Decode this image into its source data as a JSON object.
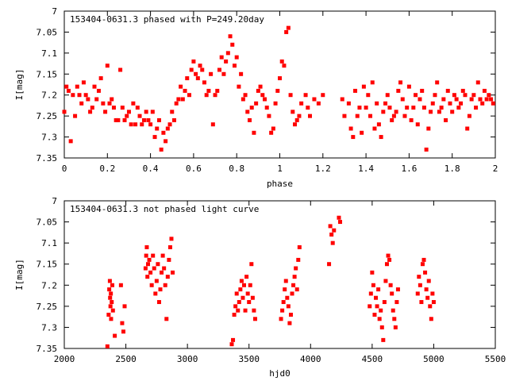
{
  "chart_data": [
    {
      "type": "scatter",
      "title": "153404-0631.3 phased with P=249.20day",
      "xlabel": "phase",
      "ylabel": "I[mag]",
      "xlim": [
        0,
        2
      ],
      "ylim": [
        7.35,
        7.0
      ],
      "y_inverted": true,
      "x_ticks": [
        "0",
        "0.2",
        "0.4",
        "0.6",
        "0.8",
        "1",
        "1.2",
        "1.4",
        "1.6",
        "1.8",
        "2"
      ],
      "x_tick_values": [
        0,
        0.2,
        0.4,
        0.6,
        0.8,
        1.0,
        1.2,
        1.4,
        1.6,
        1.8,
        2.0
      ],
      "y_ticks": [
        "7",
        "7.05",
        "7.1",
        "7.15",
        "7.2",
        "7.25",
        "7.3",
        "7.35"
      ],
      "y_tick_values": [
        7.0,
        7.05,
        7.1,
        7.15,
        7.2,
        7.25,
        7.3,
        7.35
      ],
      "marker_color": "#ff0000",
      "grid": false,
      "points": [
        [
          0.0,
          7.24
        ],
        [
          0.01,
          7.18
        ],
        [
          0.02,
          7.19
        ],
        [
          0.03,
          7.31
        ],
        [
          0.04,
          7.2
        ],
        [
          0.05,
          7.25
        ],
        [
          0.06,
          7.18
        ],
        [
          0.07,
          7.2
        ],
        [
          0.08,
          7.22
        ],
        [
          0.09,
          7.17
        ],
        [
          0.1,
          7.2
        ],
        [
          0.11,
          7.21
        ],
        [
          0.12,
          7.24
        ],
        [
          0.13,
          7.23
        ],
        [
          0.14,
          7.18
        ],
        [
          0.15,
          7.21
        ],
        [
          0.16,
          7.19
        ],
        [
          0.17,
          7.16
        ],
        [
          0.18,
          7.22
        ],
        [
          0.19,
          7.24
        ],
        [
          0.2,
          7.13
        ],
        [
          0.21,
          7.22
        ],
        [
          0.22,
          7.21
        ],
        [
          0.23,
          7.23
        ],
        [
          0.24,
          7.26
        ],
        [
          0.25,
          7.26
        ],
        [
          0.26,
          7.14
        ],
        [
          0.27,
          7.23
        ],
        [
          0.28,
          7.26
        ],
        [
          0.29,
          7.25
        ],
        [
          0.3,
          7.24
        ],
        [
          0.31,
          7.27
        ],
        [
          0.32,
          7.22
        ],
        [
          0.33,
          7.27
        ],
        [
          0.34,
          7.23
        ],
        [
          0.35,
          7.25
        ],
        [
          0.36,
          7.27
        ],
        [
          0.37,
          7.26
        ],
        [
          0.38,
          7.24
        ],
        [
          0.39,
          7.26
        ],
        [
          0.4,
          7.27
        ],
        [
          0.41,
          7.24
        ],
        [
          0.42,
          7.3
        ],
        [
          0.43,
          7.28
        ],
        [
          0.44,
          7.26
        ],
        [
          0.45,
          7.33
        ],
        [
          0.46,
          7.29
        ],
        [
          0.47,
          7.31
        ],
        [
          0.48,
          7.28
        ],
        [
          0.49,
          7.27
        ],
        [
          0.5,
          7.24
        ],
        [
          0.51,
          7.26
        ],
        [
          0.52,
          7.22
        ],
        [
          0.53,
          7.21
        ],
        [
          0.54,
          7.18
        ],
        [
          0.55,
          7.21
        ],
        [
          0.56,
          7.19
        ],
        [
          0.57,
          7.16
        ],
        [
          0.58,
          7.2
        ],
        [
          0.59,
          7.14
        ],
        [
          0.6,
          7.12
        ],
        [
          0.61,
          7.15
        ],
        [
          0.62,
          7.16
        ],
        [
          0.63,
          7.13
        ],
        [
          0.64,
          7.14
        ],
        [
          0.65,
          7.17
        ],
        [
          0.66,
          7.2
        ],
        [
          0.67,
          7.19
        ],
        [
          0.68,
          7.15
        ],
        [
          0.69,
          7.27
        ],
        [
          0.7,
          7.2
        ],
        [
          0.71,
          7.19
        ],
        [
          0.72,
          7.14
        ],
        [
          0.73,
          7.11
        ],
        [
          0.74,
          7.15
        ],
        [
          0.75,
          7.12
        ],
        [
          0.76,
          7.1
        ],
        [
          0.77,
          7.06
        ],
        [
          0.78,
          7.08
        ],
        [
          0.79,
          7.13
        ],
        [
          0.8,
          7.11
        ],
        [
          0.81,
          7.18
        ],
        [
          0.82,
          7.15
        ],
        [
          0.83,
          7.21
        ],
        [
          0.84,
          7.2
        ],
        [
          0.85,
          7.24
        ],
        [
          0.86,
          7.26
        ],
        [
          0.87,
          7.23
        ],
        [
          0.88,
          7.29
        ],
        [
          0.89,
          7.22
        ],
        [
          0.9,
          7.19
        ],
        [
          0.91,
          7.18
        ],
        [
          0.92,
          7.2
        ],
        [
          0.93,
          7.21
        ],
        [
          0.94,
          7.23
        ],
        [
          0.95,
          7.25
        ],
        [
          0.96,
          7.29
        ],
        [
          0.97,
          7.28
        ],
        [
          0.98,
          7.22
        ],
        [
          0.99,
          7.19
        ],
        [
          1.0,
          7.16
        ],
        [
          1.01,
          7.12
        ],
        [
          1.02,
          7.13
        ],
        [
          1.03,
          7.05
        ],
        [
          1.04,
          7.04
        ],
        [
          1.05,
          7.2
        ],
        [
          1.06,
          7.24
        ],
        [
          1.07,
          7.27
        ],
        [
          1.08,
          7.26
        ],
        [
          1.09,
          7.25
        ],
        [
          1.1,
          7.22
        ],
        [
          1.12,
          7.2
        ],
        [
          1.13,
          7.23
        ],
        [
          1.14,
          7.25
        ],
        [
          1.16,
          7.21
        ],
        [
          1.18,
          7.22
        ],
        [
          1.2,
          7.2
        ],
        [
          1.29,
          7.21
        ],
        [
          1.3,
          7.25
        ],
        [
          1.32,
          7.22
        ],
        [
          1.33,
          7.28
        ],
        [
          1.34,
          7.3
        ],
        [
          1.35,
          7.19
        ],
        [
          1.36,
          7.25
        ],
        [
          1.37,
          7.23
        ],
        [
          1.38,
          7.29
        ],
        [
          1.39,
          7.18
        ],
        [
          1.4,
          7.23
        ],
        [
          1.41,
          7.2
        ],
        [
          1.42,
          7.25
        ],
        [
          1.43,
          7.17
        ],
        [
          1.44,
          7.28
        ],
        [
          1.45,
          7.22
        ],
        [
          1.46,
          7.27
        ],
        [
          1.47,
          7.3
        ],
        [
          1.48,
          7.24
        ],
        [
          1.49,
          7.22
        ],
        [
          1.5,
          7.2
        ],
        [
          1.51,
          7.23
        ],
        [
          1.52,
          7.26
        ],
        [
          1.53,
          7.25
        ],
        [
          1.54,
          7.24
        ],
        [
          1.55,
          7.19
        ],
        [
          1.56,
          7.17
        ],
        [
          1.57,
          7.21
        ],
        [
          1.58,
          7.25
        ],
        [
          1.59,
          7.23
        ],
        [
          1.6,
          7.18
        ],
        [
          1.61,
          7.26
        ],
        [
          1.62,
          7.23
        ],
        [
          1.63,
          7.2
        ],
        [
          1.64,
          7.27
        ],
        [
          1.65,
          7.21
        ],
        [
          1.66,
          7.19
        ],
        [
          1.67,
          7.23
        ],
        [
          1.68,
          7.33
        ],
        [
          1.69,
          7.28
        ],
        [
          1.7,
          7.24
        ],
        [
          1.71,
          7.22
        ],
        [
          1.72,
          7.2
        ],
        [
          1.73,
          7.17
        ],
        [
          1.74,
          7.24
        ],
        [
          1.75,
          7.23
        ],
        [
          1.76,
          7.21
        ],
        [
          1.77,
          7.26
        ],
        [
          1.78,
          7.19
        ],
        [
          1.79,
          7.22
        ],
        [
          1.8,
          7.24
        ],
        [
          1.81,
          7.2
        ],
        [
          1.82,
          7.21
        ],
        [
          1.83,
          7.23
        ],
        [
          1.84,
          7.22
        ],
        [
          1.85,
          7.19
        ],
        [
          1.86,
          7.2
        ],
        [
          1.87,
          7.28
        ],
        [
          1.88,
          7.25
        ],
        [
          1.89,
          7.21
        ],
        [
          1.9,
          7.2
        ],
        [
          1.91,
          7.23
        ],
        [
          1.92,
          7.17
        ],
        [
          1.93,
          7.21
        ],
        [
          1.94,
          7.22
        ],
        [
          1.95,
          7.19
        ],
        [
          1.96,
          7.21
        ],
        [
          1.97,
          7.2
        ],
        [
          1.98,
          7.21
        ],
        [
          1.99,
          7.22
        ]
      ]
    },
    {
      "type": "scatter",
      "title": "153404-0631.3 not phased light curve",
      "xlabel": "hjd0",
      "ylabel": "I[mag]",
      "xlim": [
        2000,
        5500
      ],
      "ylim": [
        7.35,
        7.0
      ],
      "y_inverted": true,
      "x_ticks": [
        "2000",
        "2500",
        "3000",
        "3500",
        "4000",
        "4500",
        "5000",
        "5500"
      ],
      "x_tick_values": [
        2000,
        2500,
        3000,
        3500,
        4000,
        4500,
        5000,
        5500
      ],
      "y_ticks": [
        "7",
        "7.05",
        "7.1",
        "7.15",
        "7.2",
        "7.25",
        "7.3",
        "7.35"
      ],
      "y_tick_values": [
        7.0,
        7.05,
        7.1,
        7.15,
        7.2,
        7.25,
        7.3,
        7.35
      ],
      "marker_color": "#ff0000",
      "grid": false,
      "points": [
        [
          2350,
          7.345
        ],
        [
          2360,
          7.27
        ],
        [
          2365,
          7.21
        ],
        [
          2370,
          7.19
        ],
        [
          2372,
          7.23
        ],
        [
          2375,
          7.25
        ],
        [
          2378,
          7.22
        ],
        [
          2380,
          7.28
        ],
        [
          2385,
          7.24
        ],
        [
          2390,
          7.2
        ],
        [
          2395,
          7.26
        ],
        [
          2410,
          7.32
        ],
        [
          2460,
          7.2
        ],
        [
          2470,
          7.29
        ],
        [
          2480,
          7.31
        ],
        [
          2490,
          7.25
        ],
        [
          2660,
          7.16
        ],
        [
          2665,
          7.13
        ],
        [
          2670,
          7.11
        ],
        [
          2675,
          7.18
        ],
        [
          2680,
          7.15
        ],
        [
          2690,
          7.14
        ],
        [
          2700,
          7.17
        ],
        [
          2710,
          7.2
        ],
        [
          2720,
          7.13
        ],
        [
          2730,
          7.16
        ],
        [
          2740,
          7.22
        ],
        [
          2750,
          7.19
        ],
        [
          2760,
          7.15
        ],
        [
          2770,
          7.24
        ],
        [
          2780,
          7.21
        ],
        [
          2790,
          7.17
        ],
        [
          2800,
          7.13
        ],
        [
          2810,
          7.16
        ],
        [
          2820,
          7.2
        ],
        [
          2830,
          7.28
        ],
        [
          2840,
          7.18
        ],
        [
          2850,
          7.14
        ],
        [
          2860,
          7.11
        ],
        [
          2870,
          7.09
        ],
        [
          2880,
          7.17
        ],
        [
          3360,
          7.34
        ],
        [
          3370,
          7.33
        ],
        [
          3380,
          7.27
        ],
        [
          3390,
          7.25
        ],
        [
          3400,
          7.22
        ],
        [
          3410,
          7.26
        ],
        [
          3420,
          7.24
        ],
        [
          3430,
          7.21
        ],
        [
          3440,
          7.19
        ],
        [
          3450,
          7.23
        ],
        [
          3460,
          7.2
        ],
        [
          3470,
          7.26
        ],
        [
          3480,
          7.18
        ],
        [
          3490,
          7.22
        ],
        [
          3500,
          7.24
        ],
        [
          3510,
          7.2
        ],
        [
          3520,
          7.15
        ],
        [
          3530,
          7.23
        ],
        [
          3540,
          7.26
        ],
        [
          3550,
          7.28
        ],
        [
          3760,
          7.28
        ],
        [
          3770,
          7.26
        ],
        [
          3780,
          7.24
        ],
        [
          3790,
          7.21
        ],
        [
          3800,
          7.19
        ],
        [
          3810,
          7.23
        ],
        [
          3820,
          7.25
        ],
        [
          3830,
          7.29
        ],
        [
          3840,
          7.27
        ],
        [
          3850,
          7.22
        ],
        [
          3860,
          7.2
        ],
        [
          3870,
          7.18
        ],
        [
          3880,
          7.16
        ],
        [
          3890,
          7.21
        ],
        [
          3900,
          7.14
        ],
        [
          3910,
          7.11
        ],
        [
          4150,
          7.15
        ],
        [
          4160,
          7.06
        ],
        [
          4170,
          7.08
        ],
        [
          4180,
          7.1
        ],
        [
          4190,
          7.07
        ],
        [
          4230,
          7.04
        ],
        [
          4240,
          7.05
        ],
        [
          4480,
          7.25
        ],
        [
          4490,
          7.22
        ],
        [
          4500,
          7.17
        ],
        [
          4510,
          7.2
        ],
        [
          4520,
          7.27
        ],
        [
          4530,
          7.23
        ],
        [
          4540,
          7.25
        ],
        [
          4550,
          7.21
        ],
        [
          4560,
          7.28
        ],
        [
          4570,
          7.26
        ],
        [
          4580,
          7.3
        ],
        [
          4590,
          7.33
        ],
        [
          4600,
          7.24
        ],
        [
          4610,
          7.19
        ],
        [
          4620,
          7.15
        ],
        [
          4630,
          7.13
        ],
        [
          4640,
          7.14
        ],
        [
          4650,
          7.2
        ],
        [
          4660,
          7.22
        ],
        [
          4670,
          7.26
        ],
        [
          4680,
          7.28
        ],
        [
          4690,
          7.3
        ],
        [
          4700,
          7.24
        ],
        [
          4710,
          7.21
        ],
        [
          4870,
          7.22
        ],
        [
          4880,
          7.18
        ],
        [
          4890,
          7.2
        ],
        [
          4900,
          7.24
        ],
        [
          4910,
          7.15
        ],
        [
          4920,
          7.14
        ],
        [
          4930,
          7.17
        ],
        [
          4940,
          7.21
        ],
        [
          4950,
          7.23
        ],
        [
          4960,
          7.19
        ],
        [
          4970,
          7.25
        ],
        [
          4980,
          7.28
        ],
        [
          4990,
          7.22
        ],
        [
          5000,
          7.24
        ]
      ]
    }
  ]
}
